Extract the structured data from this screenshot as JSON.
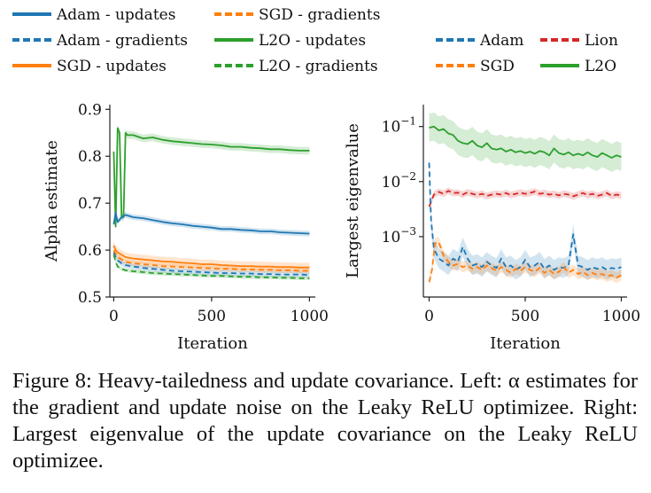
{
  "legend_left": [
    {
      "label": "Adam - updates",
      "color": "#1f77b4",
      "dash": "solid"
    },
    {
      "label": "SGD - gradients",
      "color": "#ff7f0e",
      "dash": "dashed"
    },
    {
      "label": "Adam - gradients",
      "color": "#1f77b4",
      "dash": "dashed"
    },
    {
      "label": "L2O - updates",
      "color": "#2ca02c",
      "dash": "solid"
    },
    {
      "label": "SGD - updates",
      "color": "#ff7f0e",
      "dash": "solid"
    },
    {
      "label": "L2O - gradients",
      "color": "#2ca02c",
      "dash": "dashed"
    }
  ],
  "legend_right": [
    {
      "label": "Adam",
      "color": "#1f77b4",
      "dash": "dashed"
    },
    {
      "label": "Lion",
      "color": "#d62728",
      "dash": "dashed"
    },
    {
      "label": "SGD",
      "color": "#ff7f0e",
      "dash": "dashed"
    },
    {
      "label": "L2O",
      "color": "#2ca02c",
      "dash": "solid"
    }
  ],
  "caption": "Figure 8: Heavy-tailedness and update covariance. Left: α estimates for the gradient and update noise on the Leaky ReLU optimizee. Right: Largest eigenvalue of the update covariance on the Leaky ReLU optimizee.",
  "chart_data": [
    {
      "type": "line",
      "xlabel": "Iteration",
      "ylabel": "Alpha estimate",
      "xlim": [
        -20,
        1030
      ],
      "ylim": [
        0.5,
        0.91
      ],
      "xticks": [
        0,
        500,
        1000
      ],
      "yticks": [
        0.5,
        0.6,
        0.7,
        0.8,
        0.9
      ],
      "ytick_labels": [
        "0.5",
        "0.6",
        "0.7",
        "0.8",
        "0.9"
      ],
      "grid": false,
      "series": [
        {
          "name": "L2O - updates",
          "color": "#2ca02c",
          "dash": "solid",
          "band": 0.008,
          "x": [
            0,
            10,
            20,
            30,
            40,
            50,
            60,
            70,
            100,
            150,
            200,
            250,
            300,
            350,
            400,
            450,
            500,
            550,
            600,
            650,
            700,
            750,
            800,
            850,
            900,
            950,
            1000
          ],
          "y": [
            0.81,
            0.65,
            0.86,
            0.85,
            0.67,
            0.67,
            0.85,
            0.845,
            0.845,
            0.838,
            0.84,
            0.835,
            0.832,
            0.83,
            0.828,
            0.826,
            0.825,
            0.823,
            0.82,
            0.82,
            0.818,
            0.817,
            0.815,
            0.815,
            0.813,
            0.812,
            0.812
          ]
        },
        {
          "name": "Adam - updates",
          "color": "#1f77b4",
          "dash": "solid",
          "band": 0.006,
          "x": [
            0,
            10,
            20,
            40,
            60,
            100,
            150,
            200,
            250,
            300,
            350,
            400,
            450,
            500,
            550,
            600,
            650,
            700,
            750,
            800,
            850,
            900,
            950,
            1000
          ],
          "y": [
            0.655,
            0.68,
            0.66,
            0.67,
            0.675,
            0.67,
            0.668,
            0.664,
            0.66,
            0.657,
            0.655,
            0.652,
            0.65,
            0.648,
            0.645,
            0.645,
            0.643,
            0.642,
            0.64,
            0.64,
            0.638,
            0.637,
            0.636,
            0.635
          ]
        },
        {
          "name": "SGD - updates",
          "color": "#ff7f0e",
          "dash": "solid",
          "band": 0.01,
          "x": [
            0,
            10,
            20,
            40,
            60,
            100,
            150,
            200,
            250,
            300,
            350,
            400,
            450,
            500,
            550,
            600,
            650,
            700,
            750,
            800,
            850,
            900,
            950,
            1000
          ],
          "y": [
            0.61,
            0.6,
            0.595,
            0.59,
            0.585,
            0.582,
            0.58,
            0.578,
            0.576,
            0.575,
            0.573,
            0.572,
            0.57,
            0.57,
            0.568,
            0.567,
            0.566,
            0.566,
            0.565,
            0.565,
            0.564,
            0.564,
            0.563,
            0.563
          ]
        },
        {
          "name": "SGD - gradients",
          "color": "#ff7f0e",
          "dash": "dashed",
          "band": 0.006,
          "x": [
            0,
            10,
            20,
            40,
            60,
            100,
            150,
            200,
            250,
            300,
            350,
            400,
            450,
            500,
            550,
            600,
            650,
            700,
            750,
            800,
            850,
            900,
            950,
            1000
          ],
          "y": [
            0.6,
            0.592,
            0.585,
            0.58,
            0.575,
            0.572,
            0.57,
            0.568,
            0.566,
            0.565,
            0.564,
            0.563,
            0.562,
            0.561,
            0.56,
            0.56,
            0.559,
            0.559,
            0.558,
            0.558,
            0.557,
            0.557,
            0.556,
            0.556
          ]
        },
        {
          "name": "Adam - gradients",
          "color": "#1f77b4",
          "dash": "dashed",
          "band": 0.006,
          "x": [
            0,
            10,
            20,
            40,
            60,
            100,
            150,
            200,
            250,
            300,
            350,
            400,
            450,
            500,
            550,
            600,
            650,
            700,
            750,
            800,
            850,
            900,
            950,
            1000
          ],
          "y": [
            0.595,
            0.585,
            0.578,
            0.572,
            0.568,
            0.565,
            0.562,
            0.56,
            0.558,
            0.556,
            0.555,
            0.554,
            0.553,
            0.552,
            0.551,
            0.551,
            0.55,
            0.55,
            0.549,
            0.549,
            0.548,
            0.548,
            0.548,
            0.547
          ]
        },
        {
          "name": "L2O - gradients",
          "color": "#2ca02c",
          "dash": "dashed",
          "band": 0.004,
          "x": [
            0,
            10,
            20,
            40,
            60,
            100,
            150,
            200,
            250,
            300,
            350,
            400,
            450,
            500,
            550,
            600,
            650,
            700,
            750,
            800,
            850,
            900,
            950,
            1000
          ],
          "y": [
            0.59,
            0.575,
            0.565,
            0.56,
            0.557,
            0.555,
            0.553,
            0.551,
            0.55,
            0.549,
            0.548,
            0.547,
            0.546,
            0.545,
            0.545,
            0.544,
            0.543,
            0.543,
            0.542,
            0.542,
            0.541,
            0.541,
            0.54,
            0.54
          ]
        }
      ]
    },
    {
      "type": "line",
      "xlabel": "Iteration",
      "ylabel": "Largest eigenvalue",
      "yscale": "log",
      "xlim": [
        -30,
        1030
      ],
      "ylim": [
        8e-05,
        0.25
      ],
      "xticks": [
        0,
        500,
        1000
      ],
      "yticks": [
        0.001,
        0.01,
        0.1
      ],
      "ytick_labels": [
        "10",
        "10",
        "10"
      ],
      "ytick_exponents": [
        "−3",
        "−2",
        "−1"
      ],
      "grid": false,
      "series": [
        {
          "name": "L2O",
          "color": "#2ca02c",
          "dash": "solid",
          "band_factor": 1.8,
          "x": [
            0,
            25,
            50,
            75,
            100,
            125,
            150,
            175,
            200,
            225,
            250,
            275,
            300,
            325,
            350,
            375,
            400,
            425,
            450,
            475,
            500,
            525,
            550,
            575,
            600,
            625,
            650,
            675,
            700,
            725,
            750,
            775,
            800,
            825,
            850,
            875,
            900,
            925,
            950,
            975,
            1000
          ],
          "y": [
            0.095,
            0.1,
            0.085,
            0.09,
            0.075,
            0.07,
            0.055,
            0.05,
            0.048,
            0.055,
            0.045,
            0.042,
            0.05,
            0.04,
            0.038,
            0.04,
            0.035,
            0.038,
            0.034,
            0.036,
            0.033,
            0.035,
            0.032,
            0.036,
            0.034,
            0.03,
            0.04,
            0.033,
            0.031,
            0.034,
            0.03,
            0.032,
            0.03,
            0.034,
            0.03,
            0.028,
            0.033,
            0.03,
            0.027,
            0.03,
            0.028
          ]
        },
        {
          "name": "Lion",
          "color": "#d62728",
          "dash": "dashed",
          "band_factor": 1.15,
          "x": [
            0,
            25,
            50,
            75,
            100,
            125,
            150,
            175,
            200,
            225,
            250,
            275,
            300,
            325,
            350,
            375,
            400,
            425,
            450,
            475,
            500,
            525,
            550,
            575,
            600,
            625,
            650,
            675,
            700,
            725,
            750,
            775,
            800,
            825,
            850,
            875,
            900,
            925,
            950,
            975,
            1000
          ],
          "y": [
            0.0035,
            0.0058,
            0.0065,
            0.006,
            0.0068,
            0.0062,
            0.0063,
            0.0058,
            0.0064,
            0.006,
            0.0057,
            0.006,
            0.0055,
            0.0058,
            0.006,
            0.0058,
            0.0062,
            0.0057,
            0.006,
            0.0063,
            0.006,
            0.0062,
            0.0066,
            0.006,
            0.0062,
            0.0058,
            0.006,
            0.0056,
            0.006,
            0.0058,
            0.0054,
            0.0058,
            0.0062,
            0.0057,
            0.006,
            0.0055,
            0.0058,
            0.0062,
            0.0055,
            0.0058,
            0.0056
          ]
        },
        {
          "name": "Adam",
          "color": "#1f77b4",
          "dash": "dashed",
          "band_factor": 1.5,
          "x": [
            0,
            10,
            25,
            50,
            75,
            100,
            125,
            150,
            175,
            200,
            225,
            250,
            275,
            300,
            325,
            350,
            375,
            400,
            425,
            450,
            475,
            500,
            525,
            550,
            575,
            600,
            625,
            650,
            675,
            700,
            725,
            750,
            775,
            800,
            825,
            850,
            875,
            900,
            925,
            950,
            975,
            1000
          ],
          "y": [
            0.022,
            0.002,
            0.0006,
            0.0004,
            0.00035,
            0.0003,
            0.0004,
            0.00035,
            0.00065,
            0.0004,
            0.0003,
            0.00032,
            0.00028,
            0.00035,
            0.0003,
            0.00027,
            0.0004,
            0.00028,
            0.0003,
            0.00025,
            0.00028,
            0.00038,
            0.00028,
            0.0003,
            0.00035,
            0.00026,
            0.0003,
            0.00025,
            0.00028,
            0.00027,
            0.0003,
            0.0011,
            0.0003,
            0.00028,
            0.00025,
            0.00028,
            0.00026,
            0.00028,
            0.00025,
            0.00027,
            0.00026,
            0.00028
          ]
        },
        {
          "name": "SGD",
          "color": "#ff7f0e",
          "dash": "dashed",
          "band_factor": 1.25,
          "x": [
            0,
            15,
            30,
            50,
            75,
            100,
            125,
            150,
            175,
            200,
            225,
            250,
            275,
            300,
            325,
            350,
            375,
            400,
            425,
            450,
            475,
            500,
            525,
            550,
            575,
            600,
            625,
            650,
            675,
            700,
            725,
            750,
            775,
            800,
            825,
            850,
            875,
            900,
            925,
            950,
            975,
            1000
          ],
          "y": [
            0.00015,
            0.00025,
            0.00075,
            0.0008,
            0.00045,
            0.00035,
            0.0003,
            0.00032,
            0.00028,
            0.0003,
            0.00026,
            0.00028,
            0.00025,
            0.0003,
            0.00027,
            0.00024,
            0.00028,
            0.00025,
            0.00022,
            0.00026,
            0.00024,
            0.00028,
            0.00025,
            0.00023,
            0.00027,
            0.00022,
            0.00025,
            0.00021,
            0.00023,
            0.00028,
            0.00022,
            0.00025,
            0.00021,
            0.00023,
            0.0002,
            0.00022,
            0.0002,
            0.00021,
            0.00019,
            0.0002,
            0.00018,
            0.0002
          ]
        }
      ]
    }
  ]
}
